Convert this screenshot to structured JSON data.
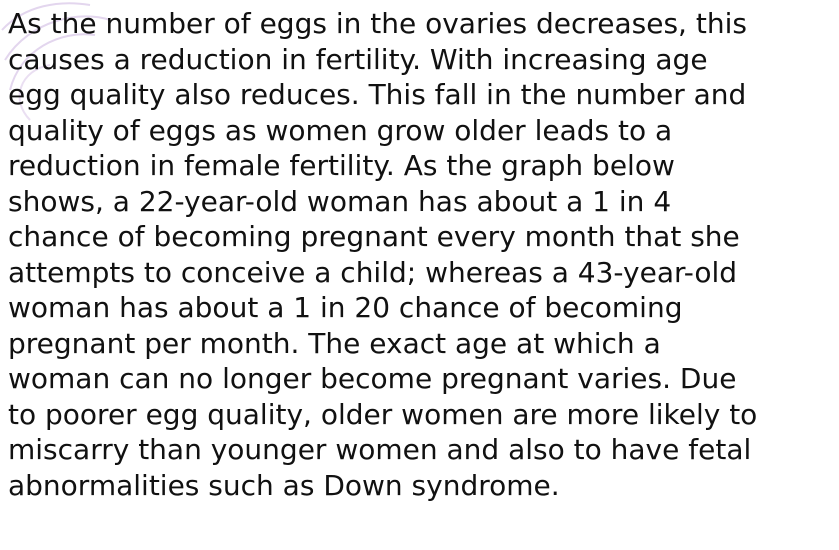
{
  "paragraph": {
    "lines": [
      "As the number of eggs in the ovaries decreases, this",
      "causes a reduction in fertility. With increasing age",
      "egg quality also reduces. This fall in the number and",
      "quality of eggs as women grow older leads to a",
      "reduction in female fertility. As the graph below",
      "shows, a 22-year-old woman has about a 1 in 4",
      "chance of becoming pregnant every month that she",
      "attempts to conceive a child; whereas a 43-year-old",
      "woman has about a 1 in 20 chance of becoming",
      "pregnant per month. The exact age at which a",
      "woman can no longer become pregnant varies. Due",
      "to poorer egg quality, older women are more likely to",
      "miscarry than younger women and also to have fetal",
      "abnormalities such as Down syndrome."
    ]
  }
}
